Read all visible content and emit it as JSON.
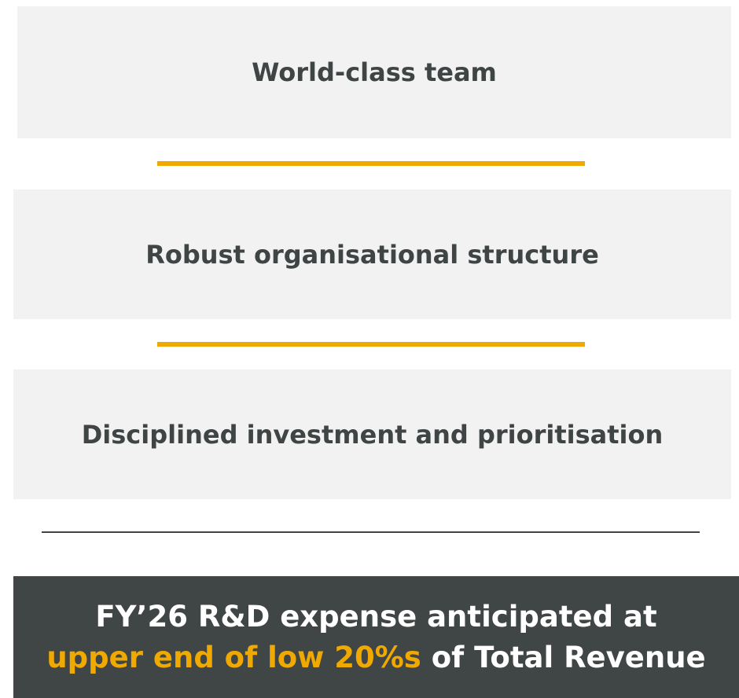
{
  "items": [
    "World-class team",
    "Robust organisational structure",
    "Disciplined investment and prioritisation"
  ],
  "callout": {
    "parts": [
      {
        "text": "FY’26 R&D expense anticipated at ",
        "highlight": false
      },
      {
        "text": "upper end of low 20%s",
        "highlight": true
      },
      {
        "text": " of Total Revenue",
        "highlight": false
      }
    ]
  }
}
